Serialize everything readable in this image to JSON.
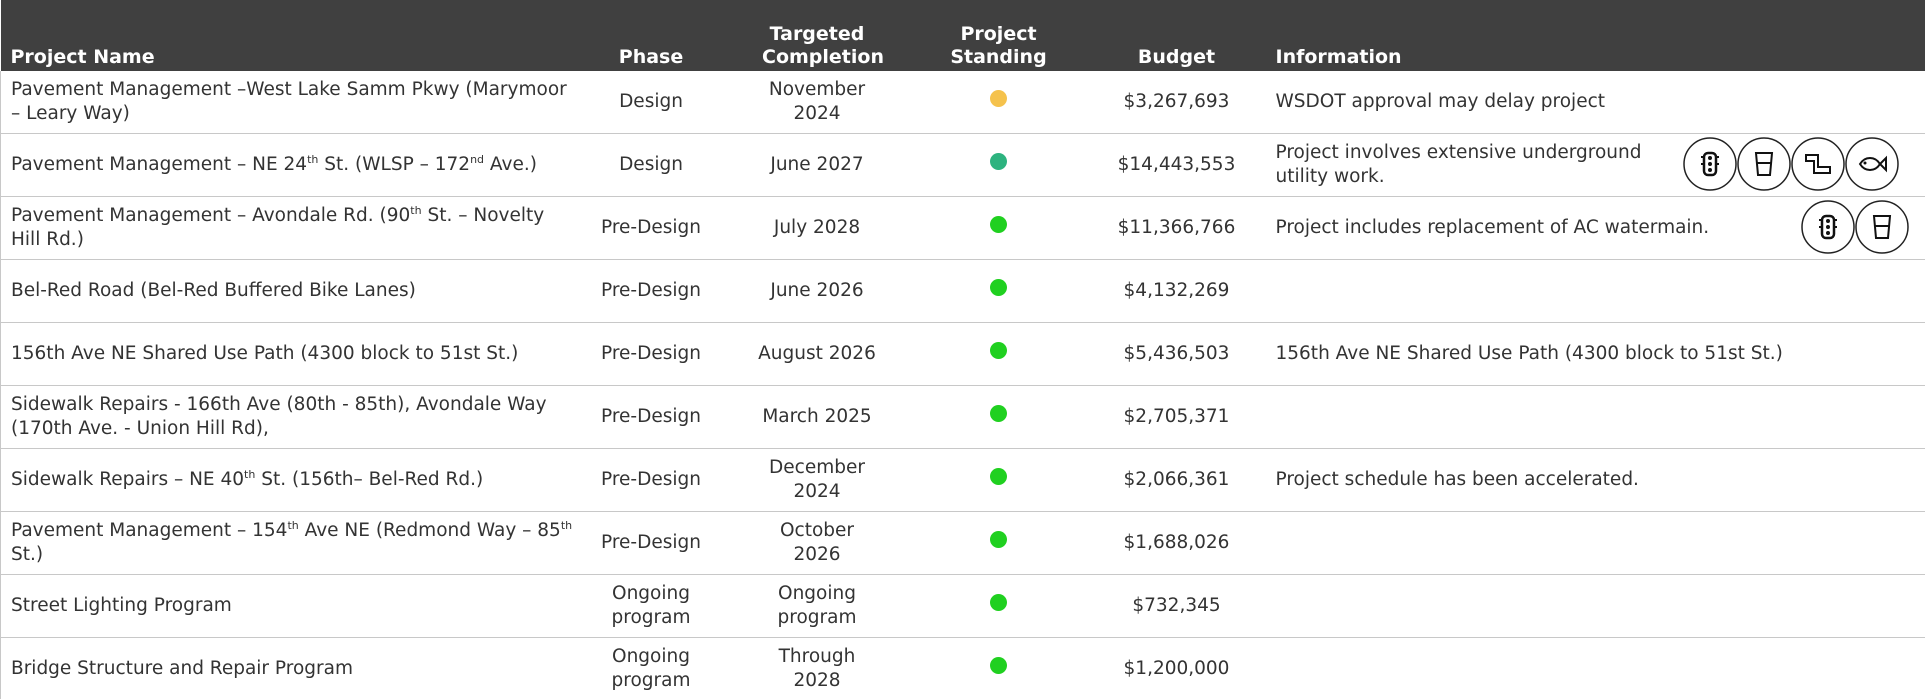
{
  "table": {
    "columns": [
      "Project Name",
      "Phase",
      "Targeted Completion",
      "Project Standing",
      "Budget",
      "Information"
    ],
    "rows": [
      {
        "name": [
          [
            "Pavement Management –West Lake Samm Pkwy (Marymoor – Leary Way)",
            false
          ]
        ],
        "phase": "Design",
        "completion": "November 2024",
        "standing": "#f5c24c",
        "budget": "$3,267,693",
        "info": "WSDOT approval may delay project"
      },
      {
        "name": [
          [
            "Pavement Management – NE 24",
            false
          ],
          [
            "th",
            true
          ],
          [
            " St. (WLSP – 172",
            false
          ],
          [
            "nd",
            true
          ],
          [
            " Ave.)",
            false
          ]
        ],
        "phase": "Design",
        "completion": "June 2027",
        "standing": "#2db37f",
        "budget": "$14,443,553",
        "info": "Project involves extensive underground utility work."
      },
      {
        "name": [
          [
            "Pavement Management – Avondale Rd. (90",
            false
          ],
          [
            "th",
            true
          ],
          [
            " St. – Novelty Hill Rd.)",
            false
          ]
        ],
        "phase": "Pre-Design",
        "completion": "July 2028",
        "standing": "#20d020",
        "budget": "$11,366,766",
        "info": "Project includes replacement of AC watermain."
      },
      {
        "name": [
          [
            "Bel-Red Road (Bel-Red Buffered Bike Lanes)",
            false
          ]
        ],
        "phase": "Pre-Design",
        "completion": "June 2026",
        "standing": "#20d020",
        "budget": "$4,132,269",
        "info": ""
      },
      {
        "name": [
          [
            "156th Ave NE Shared Use Path (4300 block to 51st St.)",
            false
          ]
        ],
        "phase": "Pre-Design",
        "completion": "August 2026",
        "standing": "#20d020",
        "budget": "$5,436,503",
        "info": "156th Ave NE Shared Use Path (4300 block to 51st St.)"
      },
      {
        "name": [
          [
            "Sidewalk Repairs - 166th Ave (80th - 85th), Avondale Way (170th Ave. - Union Hill Rd),",
            false
          ]
        ],
        "phase": "Pre-Design",
        "completion": "March 2025",
        "standing": "#20d020",
        "budget": "$2,705,371",
        "info": ""
      },
      {
        "name": [
          [
            "Sidewalk Repairs – NE  40",
            false
          ],
          [
            "th",
            true
          ],
          [
            " St. (156th– Bel-Red Rd.)",
            false
          ]
        ],
        "phase": "Pre-Design",
        "completion": "December 2024",
        "standing": "#20d020",
        "budget": "$2,066,361",
        "info": "Project schedule has been accelerated."
      },
      {
        "name": [
          [
            "Pavement Management – 154",
            false
          ],
          [
            "th",
            true
          ],
          [
            " Ave NE (Redmond Way – 85",
            false
          ],
          [
            "th",
            true
          ],
          [
            " St.)",
            false
          ]
        ],
        "phase": "Pre-Design",
        "completion": "October 2026",
        "standing": "#20d020",
        "budget": "$1,688,026",
        "info": ""
      },
      {
        "name": [
          [
            "Street Lighting Program",
            false
          ]
        ],
        "phase": "Ongoing program",
        "completion": "Ongoing program",
        "standing": "#20d020",
        "budget": "$732,345",
        "info": ""
      },
      {
        "name": [
          [
            "Bridge Structure and Repair Program",
            false
          ]
        ],
        "phase": "Ongoing program",
        "completion": "Through 2028",
        "standing": "#20d020",
        "budget": "$1,200,000",
        "info": ""
      }
    ]
  }
}
